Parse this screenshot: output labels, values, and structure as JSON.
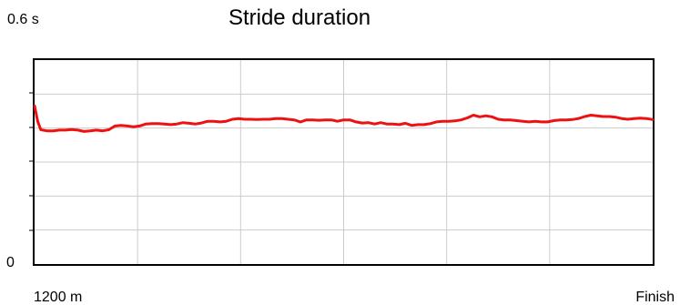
{
  "chart_data": {
    "type": "line",
    "title": "Stride duration",
    "y_top_label": "0.6 s",
    "y_bottom_label": "0",
    "x_start_label": "1200 m",
    "x_end_label": "Finish",
    "ylim": [
      0,
      0.6
    ],
    "xlim": [
      0,
      100
    ],
    "grid": true,
    "legend": "none",
    "line_color": "#ee1111",
    "series": [
      {
        "x": [
          0,
          0.5,
          1,
          2,
          3,
          4,
          5,
          6,
          7,
          8,
          9,
          10,
          11,
          12,
          13,
          14,
          15,
          16,
          17,
          18,
          19,
          20,
          21,
          22,
          23,
          24,
          25,
          26,
          27,
          28,
          29,
          30,
          31,
          32,
          33,
          34,
          35,
          36,
          37,
          38,
          39,
          40,
          41,
          42,
          43,
          44,
          45,
          46,
          47,
          48,
          49,
          50,
          51,
          52,
          53,
          54,
          55,
          56,
          57,
          58,
          59,
          60,
          61,
          62,
          63,
          64,
          65,
          66,
          67,
          68,
          69,
          70,
          71,
          72,
          73,
          74,
          75,
          76,
          77,
          78,
          79,
          80,
          81,
          82,
          83,
          84,
          85,
          86,
          87,
          88,
          89,
          90,
          91,
          92,
          93,
          94,
          95,
          96,
          97,
          98,
          99,
          100
        ],
        "values": [
          0.465,
          0.42,
          0.395,
          0.392,
          0.392,
          0.394,
          0.394,
          0.396,
          0.394,
          0.39,
          0.392,
          0.394,
          0.392,
          0.395,
          0.406,
          0.408,
          0.406,
          0.404,
          0.406,
          0.412,
          0.413,
          0.413,
          0.412,
          0.41,
          0.412,
          0.416,
          0.414,
          0.412,
          0.415,
          0.42,
          0.42,
          0.418,
          0.42,
          0.426,
          0.428,
          0.426,
          0.426,
          0.425,
          0.426,
          0.426,
          0.428,
          0.428,
          0.426,
          0.424,
          0.418,
          0.424,
          0.424,
          0.423,
          0.424,
          0.424,
          0.42,
          0.424,
          0.424,
          0.418,
          0.415,
          0.416,
          0.412,
          0.416,
          0.412,
          0.412,
          0.41,
          0.414,
          0.408,
          0.41,
          0.41,
          0.413,
          0.418,
          0.42,
          0.42,
          0.421,
          0.424,
          0.43,
          0.438,
          0.433,
          0.436,
          0.433,
          0.426,
          0.424,
          0.424,
          0.422,
          0.42,
          0.418,
          0.42,
          0.418,
          0.418,
          0.422,
          0.424,
          0.424,
          0.425,
          0.428,
          0.434,
          0.438,
          0.436,
          0.434,
          0.434,
          0.432,
          0.428,
          0.426,
          0.428,
          0.429,
          0.428,
          0.425
        ]
      }
    ]
  }
}
